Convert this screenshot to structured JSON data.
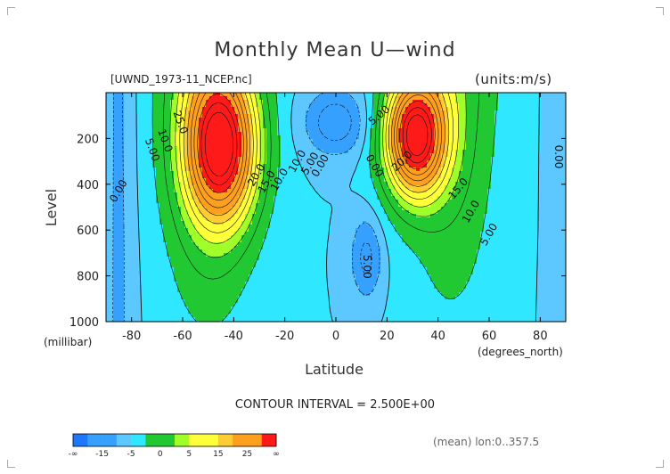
{
  "header": {
    "title": "Monthly Mean U—wind",
    "file_label": "[UWND_1973-11_NCEP.nc]",
    "units_label": "(units:m/s)"
  },
  "footer": {
    "contour_interval": "CONTOUR INTERVAL = 2.500E+00",
    "mean_lon": "(mean) lon:0..357.5"
  },
  "colors": {
    "neg_deep": "#1e78ff",
    "neg_mid": "#36a0ff",
    "neg_light": "#5cc8ff",
    "zero": "#2fe8ff",
    "green": "#22c832",
    "lgreen": "#a0ff28",
    "yellow": "#ffff3a",
    "lorange": "#ffcc33",
    "orange": "#ff9f1e",
    "red": "#ff1a1a"
  },
  "chart_data": {
    "type": "heatmap",
    "title": "Monthly Mean U—wind",
    "xlabel": "Latitude",
    "ylabel": "Level",
    "x_unit_label": "(degrees_north)",
    "y_unit_label": "(millibar)",
    "xlim": [
      -90,
      90
    ],
    "ylim": [
      1000,
      0
    ],
    "x_ticks": [
      -80,
      -60,
      -40,
      -20,
      0,
      20,
      40,
      60,
      80
    ],
    "y_ticks": [
      200,
      400,
      600,
      800,
      1000
    ],
    "x_tick_labels": [
      "-80",
      "-60",
      "-40",
      "-20",
      "0",
      "20",
      "40",
      "60",
      "80"
    ],
    "y_tick_labels": [
      "200",
      "400",
      "600",
      "800",
      "1000"
    ],
    "contour_interval": 2.5,
    "jets": [
      {
        "lat": -45,
        "level": 240,
        "max": 27.5
      },
      {
        "lat": 31,
        "level": 190,
        "max": 30
      }
    ],
    "contour_labels": [
      {
        "text": "25.0",
        "lat": -61,
        "level": 130,
        "rot": 70
      },
      {
        "text": "10.0",
        "lat": -67,
        "level": 210,
        "rot": 70
      },
      {
        "text": "5.00",
        "lat": -72,
        "level": 250,
        "rot": 70
      },
      {
        "text": "0.00",
        "lat": -85,
        "level": 430,
        "rot": -60
      },
      {
        "text": "20.0",
        "lat": -31,
        "level": 360,
        "rot": -60
      },
      {
        "text": "15.0",
        "lat": -27,
        "level": 390,
        "rot": -60
      },
      {
        "text": "10.0",
        "lat": -22,
        "level": 380,
        "rot": -60
      },
      {
        "text": "10.0",
        "lat": -15,
        "level": 300,
        "rot": -60
      },
      {
        "text": "5.00",
        "lat": -10,
        "level": 310,
        "rot": -60
      },
      {
        "text": "0.00",
        "lat": -6,
        "level": 320,
        "rot": -60
      },
      {
        "text": "0.00",
        "lat": 15,
        "level": 320,
        "rot": 60
      },
      {
        "text": "5.00",
        "lat": 17,
        "level": 100,
        "rot": -40
      },
      {
        "text": "20.0",
        "lat": 26,
        "level": 300,
        "rot": -45
      },
      {
        "text": "15.0",
        "lat": 48,
        "level": 420,
        "rot": -50
      },
      {
        "text": "10.0",
        "lat": 53,
        "level": 520,
        "rot": -60
      },
      {
        "text": "5.00",
        "lat": 60,
        "level": 620,
        "rot": -60
      },
      {
        "text": "5.00",
        "lat": 12,
        "level": 760,
        "rot": 90
      },
      {
        "text": "0.00",
        "lat": 87,
        "level": 280,
        "rot": 90
      }
    ],
    "legend": {
      "tick_labels": [
        "-∞",
        "-15",
        "-5",
        "0",
        "5",
        "15",
        "25",
        "∞"
      ],
      "bins": [
        "neg_deep",
        "neg_mid",
        "neg_mid",
        "neg_light",
        "zero",
        "green",
        "green",
        "lgreen",
        "yellow",
        "yellow",
        "lorange",
        "orange",
        "orange",
        "red"
      ]
    }
  }
}
